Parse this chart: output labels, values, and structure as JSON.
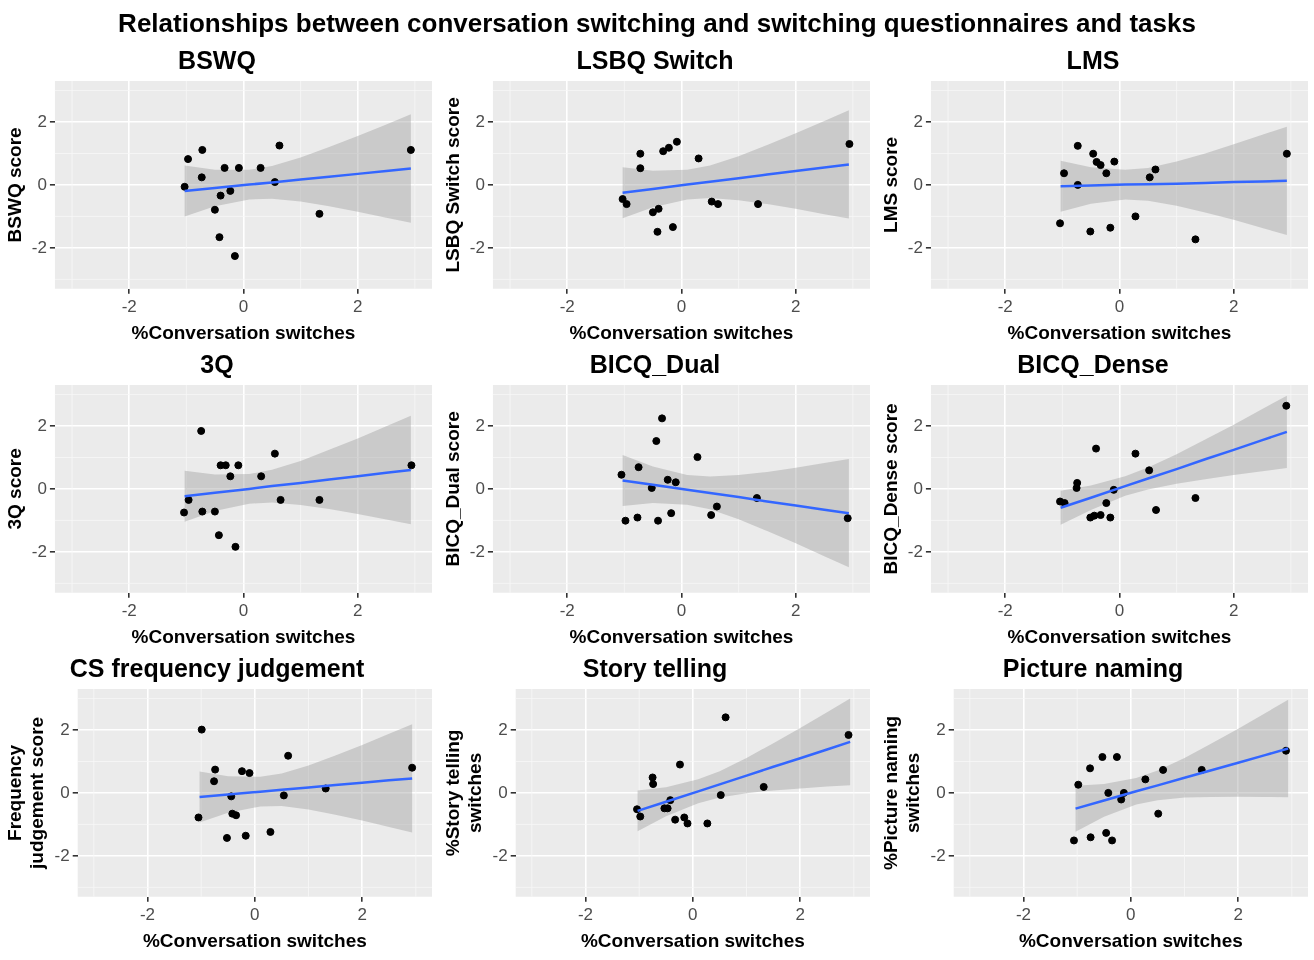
{
  "chart_data": [
    {
      "type": "other",
      "title": "Relationships between conversation switching and switching questionnaires and tasks"
    },
    {
      "type": "scatter",
      "title": "BSWQ",
      "xlabel": "%Conversation switches",
      "ylabel": "BSWQ score",
      "xlim": [
        -3.3,
        3.3
      ],
      "ylim": [
        -3.3,
        3.3
      ],
      "xticks": [
        -2,
        0,
        2
      ],
      "yticks": [
        -2,
        0,
        2
      ],
      "grid": true,
      "series": [
        {
          "type": "scatter",
          "marker": "circle",
          "color": "#000000",
          "x": [
            -1.03,
            -0.97,
            -0.72,
            -0.73,
            -0.5,
            -0.4,
            -0.42,
            -0.33,
            -0.23,
            -0.15,
            -0.08,
            0.3,
            0.55,
            0.63,
            1.33,
            2.93
          ],
          "values": [
            -0.06,
            0.82,
            1.11,
            0.24,
            -0.79,
            -0.34,
            -1.66,
            0.54,
            -0.19,
            -2.26,
            0.54,
            0.54,
            0.09,
            1.25,
            -0.92,
            1.11
          ]
        },
        {
          "type": "line",
          "marker": "none",
          "color": "#3366ff",
          "x": [
            -1.03,
            -0.5,
            0.1,
            0.5,
            1,
            1.5,
            2,
            2.5,
            2.93
          ],
          "values": [
            -0.19,
            -0.1,
            0.01,
            0.08,
            0.17,
            0.26,
            0.35,
            0.44,
            0.52
          ],
          "upper": [
            0.62,
            0.48,
            0.48,
            0.6,
            0.87,
            1.2,
            1.55,
            1.92,
            2.24
          ],
          "lower": [
            -1.0,
            -0.68,
            -0.46,
            -0.44,
            -0.53,
            -0.68,
            -0.85,
            -1.04,
            -1.2
          ]
        }
      ]
    },
    {
      "type": "scatter",
      "title": "LSBQ Switch",
      "xlabel": "%Conversation switches",
      "ylabel": "LSBQ Switch score",
      "xlim": [
        -3.3,
        3.3
      ],
      "ylim": [
        -3.3,
        3.3
      ],
      "xticks": [
        -2,
        0,
        2
      ],
      "yticks": [
        -2,
        0,
        2
      ],
      "grid": true,
      "series": [
        {
          "type": "scatter",
          "marker": "circle",
          "color": "#000000",
          "x": [
            -1.03,
            -0.96,
            -0.72,
            -0.72,
            -0.5,
            -0.4,
            -0.42,
            -0.32,
            -0.22,
            -0.15,
            -0.08,
            0.3,
            0.53,
            0.64,
            1.34,
            2.94
          ],
          "values": [
            -0.45,
            -0.61,
            0.99,
            0.53,
            -0.87,
            -0.76,
            -1.49,
            1.07,
            1.18,
            -1.34,
            1.37,
            0.84,
            -0.53,
            -0.61,
            -0.61,
            1.3
          ]
        },
        {
          "type": "line",
          "marker": "none",
          "color": "#3366ff",
          "x": [
            -1.03,
            -0.5,
            0.1,
            0.5,
            1,
            1.5,
            2,
            2.5,
            2.93
          ],
          "values": [
            -0.25,
            -0.13,
            0.01,
            0.1,
            0.21,
            0.33,
            0.44,
            0.55,
            0.65
          ],
          "upper": [
            0.56,
            0.45,
            0.48,
            0.62,
            0.91,
            1.27,
            1.64,
            2.03,
            2.37
          ],
          "lower": [
            -1.06,
            -0.71,
            -0.46,
            -0.42,
            -0.49,
            -0.61,
            -0.76,
            -0.93,
            -1.07
          ]
        }
      ]
    },
    {
      "type": "scatter",
      "title": "LMS",
      "xlabel": "%Conversation switches",
      "ylabel": "LMS score",
      "xlim": [
        -3.3,
        3.3
      ],
      "ylim": [
        -3.3,
        3.3
      ],
      "xticks": [
        -2,
        0,
        2
      ],
      "yticks": [
        -2,
        0,
        2
      ],
      "grid": true,
      "series": [
        {
          "type": "scatter",
          "marker": "circle",
          "color": "#000000",
          "x": [
            -1.04,
            -0.97,
            -0.73,
            -0.73,
            -0.51,
            -0.46,
            -0.4,
            -0.33,
            -0.23,
            -0.16,
            -0.09,
            0.28,
            0.53,
            0.63,
            1.33,
            2.93
          ],
          "values": [
            -1.22,
            0.37,
            1.24,
            0.0,
            -1.48,
            0.99,
            0.73,
            0.63,
            0.37,
            -1.36,
            0.74,
            -1.0,
            0.24,
            0.49,
            -1.73,
            0.99
          ]
        },
        {
          "type": "line",
          "marker": "none",
          "color": "#3366ff",
          "x": [
            -1.03,
            -0.5,
            0.1,
            0.5,
            1,
            1.5,
            2,
            2.5,
            2.93
          ],
          "values": [
            -0.04,
            -0.02,
            0.01,
            0.02,
            0.04,
            0.06,
            0.09,
            0.11,
            0.13
          ],
          "upper": [
            0.77,
            0.56,
            0.48,
            0.54,
            0.74,
            1.0,
            1.29,
            1.59,
            1.85
          ],
          "lower": [
            -0.85,
            -0.6,
            -0.46,
            -0.5,
            -0.66,
            -0.88,
            -1.11,
            -1.37,
            -1.59
          ]
        }
      ]
    },
    {
      "type": "scatter",
      "title": "3Q",
      "xlabel": "%Conversation switches",
      "ylabel": "3Q score",
      "xlim": [
        -3.3,
        3.3
      ],
      "ylim": [
        -3.3,
        3.3
      ],
      "xticks": [
        -2,
        0,
        2
      ],
      "yticks": [
        -2,
        0,
        2
      ],
      "grid": true,
      "series": [
        {
          "type": "scatter",
          "marker": "circle",
          "color": "#000000",
          "x": [
            -1.04,
            -0.96,
            -0.74,
            -0.72,
            -0.5,
            -0.43,
            -0.4,
            -0.31,
            -0.23,
            -0.14,
            -0.09,
            0.31,
            0.55,
            0.65,
            1.33,
            2.94
          ],
          "values": [
            -0.75,
            -0.35,
            1.84,
            -0.72,
            -0.72,
            -1.47,
            0.75,
            0.75,
            0.4,
            -1.84,
            0.75,
            0.4,
            1.12,
            -0.35,
            -0.35,
            0.75
          ]
        },
        {
          "type": "line",
          "marker": "none",
          "color": "#3366ff",
          "x": [
            -1.03,
            -0.5,
            0.1,
            0.5,
            1,
            1.5,
            2,
            2.5,
            2.93
          ],
          "values": [
            -0.23,
            -0.12,
            0.0,
            0.09,
            0.19,
            0.3,
            0.4,
            0.51,
            0.6
          ],
          "upper": [
            0.58,
            0.46,
            0.47,
            0.61,
            0.89,
            1.24,
            1.6,
            1.99,
            2.32
          ],
          "lower": [
            -1.04,
            -0.7,
            -0.47,
            -0.43,
            -0.51,
            -0.64,
            -0.8,
            -0.97,
            -1.12
          ]
        }
      ]
    },
    {
      "type": "scatter",
      "title": "BICQ_Dual",
      "xlabel": "%Conversation switches",
      "ylabel": "BICQ_Dual score",
      "xlim": [
        -3.3,
        3.3
      ],
      "ylim": [
        -3.3,
        3.3
      ],
      "xticks": [
        -2,
        0,
        2
      ],
      "yticks": [
        -2,
        0,
        2
      ],
      "grid": true,
      "series": [
        {
          "type": "scatter",
          "marker": "circle",
          "color": "#000000",
          "x": [
            -1.05,
            -0.98,
            -0.75,
            -0.77,
            -0.52,
            -0.44,
            -0.41,
            -0.34,
            -0.24,
            -0.18,
            -0.1,
            0.28,
            0.52,
            0.62,
            1.32,
            2.91
          ],
          "values": [
            0.45,
            -1.01,
            0.69,
            -0.91,
            0.03,
            1.52,
            -1.01,
            2.24,
            0.29,
            -0.77,
            0.21,
            1.01,
            -0.83,
            -0.56,
            -0.29,
            -0.93
          ]
        },
        {
          "type": "line",
          "marker": "none",
          "color": "#3366ff",
          "x": [
            -1.03,
            -0.5,
            0.1,
            0.5,
            1,
            1.5,
            2,
            2.5,
            2.93
          ],
          "values": [
            0.27,
            0.13,
            -0.03,
            -0.13,
            -0.26,
            -0.4,
            -0.53,
            -0.66,
            -0.77
          ],
          "upper": [
            1.08,
            0.71,
            0.44,
            0.39,
            0.44,
            0.54,
            0.67,
            0.82,
            0.95
          ],
          "lower": [
            -0.54,
            -0.45,
            -0.5,
            -0.65,
            -0.96,
            -1.34,
            -1.73,
            -2.14,
            -2.49
          ]
        }
      ]
    },
    {
      "type": "scatter",
      "title": "BICQ_Dense",
      "xlabel": "%Conversation switches",
      "ylabel": "BICQ_Dense score",
      "xlim": [
        -3.3,
        3.3
      ],
      "ylim": [
        -3.3,
        3.3
      ],
      "xticks": [
        -2,
        0,
        2
      ],
      "yticks": [
        -2,
        0,
        2
      ],
      "grid": true,
      "series": [
        {
          "type": "scatter",
          "marker": "circle",
          "color": "#000000",
          "x": [
            -1.04,
            -0.96,
            -0.75,
            -0.74,
            -0.51,
            -0.41,
            -0.44,
            -0.33,
            -0.23,
            -0.16,
            -0.1,
            0.28,
            0.52,
            0.64,
            1.33,
            2.92
          ],
          "values": [
            -0.4,
            -0.45,
            0.03,
            0.19,
            -0.91,
            1.28,
            -0.85,
            -0.83,
            -0.45,
            -0.91,
            -0.03,
            1.12,
            0.59,
            -0.67,
            -0.29,
            2.64
          ]
        },
        {
          "type": "line",
          "marker": "none",
          "color": "#3366ff",
          "x": [
            -1.03,
            -0.5,
            0.1,
            0.5,
            1,
            1.5,
            2,
            2.5,
            2.93
          ],
          "values": [
            -0.6,
            -0.28,
            0.09,
            0.33,
            0.63,
            0.94,
            1.24,
            1.55,
            1.81
          ],
          "upper": [
            -0.06,
            0.11,
            0.4,
            0.68,
            1.1,
            1.57,
            2.04,
            2.54,
            2.96
          ],
          "lower": [
            -1.14,
            -0.67,
            -0.22,
            -0.02,
            0.16,
            0.31,
            0.44,
            0.56,
            0.66
          ]
        }
      ]
    },
    {
      "type": "scatter",
      "title": "CS frequency judgement",
      "xlabel": "%Conversation switches",
      "ylabel": "Frequency judgement score",
      "xlim": [
        -3.3,
        3.3
      ],
      "ylim": [
        -3.3,
        3.3
      ],
      "xticks": [
        -2,
        0,
        2
      ],
      "yticks": [
        -2,
        0,
        2
      ],
      "grid": true,
      "series": [
        {
          "type": "scatter",
          "marker": "circle",
          "color": "#000000",
          "x": [
            -1.05,
            -0.99,
            -0.74,
            -0.76,
            -0.52,
            -0.44,
            -0.42,
            -0.35,
            -0.24,
            -0.17,
            -0.1,
            0.29,
            0.54,
            0.62,
            1.32,
            2.93
          ],
          "values": [
            -0.78,
            2.01,
            0.74,
            0.37,
            -1.43,
            -0.11,
            -0.66,
            -0.71,
            0.69,
            -1.36,
            0.63,
            -1.24,
            -0.08,
            1.18,
            0.14,
            0.8
          ]
        },
        {
          "type": "line",
          "marker": "none",
          "color": "#3366ff",
          "x": [
            -1.03,
            -0.5,
            0.1,
            0.5,
            1,
            1.5,
            2,
            2.5,
            2.93
          ],
          "values": [
            -0.13,
            -0.05,
            0.04,
            0.1,
            0.17,
            0.25,
            0.32,
            0.4,
            0.46
          ],
          "upper": [
            0.68,
            0.53,
            0.51,
            0.62,
            0.87,
            1.19,
            1.52,
            1.88,
            2.18
          ],
          "lower": [
            -0.94,
            -0.63,
            -0.43,
            -0.42,
            -0.53,
            -0.69,
            -0.88,
            -1.08,
            -1.26
          ]
        }
      ]
    },
    {
      "type": "scatter",
      "title": "Story telling",
      "xlabel": "%Conversation switches",
      "ylabel": "%Story telling switches",
      "xlim": [
        -3.3,
        3.3
      ],
      "ylim": [
        -3.3,
        3.3
      ],
      "xticks": [
        -2,
        0,
        2
      ],
      "yticks": [
        -2,
        0,
        2
      ],
      "grid": true,
      "series": [
        {
          "type": "scatter",
          "marker": "circle",
          "color": "#000000",
          "x": [
            -1.04,
            -0.98,
            -0.75,
            -0.74,
            -0.53,
            -0.47,
            -0.42,
            -0.33,
            -0.24,
            -0.16,
            -0.1,
            0.27,
            0.52,
            0.61,
            1.32,
            2.9
          ],
          "values": [
            -0.52,
            -0.75,
            0.49,
            0.28,
            -0.49,
            -0.49,
            -0.23,
            -0.85,
            0.9,
            -0.78,
            -0.97,
            -0.97,
            -0.07,
            2.4,
            0.19,
            1.84
          ]
        },
        {
          "type": "line",
          "marker": "none",
          "color": "#3366ff",
          "x": [
            -1.03,
            -0.5,
            0.1,
            0.5,
            1,
            1.5,
            2,
            2.5,
            2.93
          ],
          "values": [
            -0.57,
            -0.28,
            0.05,
            0.27,
            0.55,
            0.83,
            1.1,
            1.38,
            1.62
          ],
          "upper": [
            0.08,
            0.18,
            0.43,
            0.69,
            1.11,
            1.58,
            2.06,
            2.56,
            3.0
          ],
          "lower": [
            -1.22,
            -0.74,
            -0.33,
            -0.15,
            -0.01,
            0.08,
            0.14,
            0.2,
            0.24
          ]
        }
      ]
    },
    {
      "type": "scatter",
      "title": "Picture naming",
      "xlabel": "%Conversation switches",
      "ylabel": "%Picture naming switches",
      "xlim": [
        -3.3,
        3.3
      ],
      "ylim": [
        -3.3,
        3.3
      ],
      "xticks": [
        -2,
        0,
        2
      ],
      "yticks": [
        -2,
        0,
        2
      ],
      "grid": true,
      "series": [
        {
          "type": "scatter",
          "marker": "circle",
          "color": "#000000",
          "x": [
            -1.06,
            -0.98,
            -0.76,
            -0.75,
            -0.53,
            -0.46,
            -0.42,
            -0.35,
            -0.26,
            -0.18,
            -0.13,
            0.27,
            0.51,
            0.6,
            1.32,
            2.89
          ],
          "values": [
            -1.51,
            0.26,
            0.78,
            -1.41,
            1.14,
            -1.27,
            0.0,
            -1.51,
            1.14,
            -0.21,
            0.0,
            0.43,
            -0.66,
            0.73,
            0.73,
            1.34
          ]
        },
        {
          "type": "line",
          "marker": "none",
          "color": "#3366ff",
          "x": [
            -1.03,
            -0.5,
            0.1,
            0.5,
            1,
            1.5,
            2,
            2.5,
            2.93
          ],
          "values": [
            -0.5,
            -0.24,
            0.05,
            0.24,
            0.48,
            0.72,
            0.96,
            1.2,
            1.41
          ],
          "upper": [
            0.23,
            0.28,
            0.47,
            0.71,
            1.11,
            1.57,
            2.04,
            2.53,
            2.96
          ],
          "lower": [
            -1.23,
            -0.76,
            -0.37,
            -0.23,
            -0.15,
            -0.13,
            -0.12,
            -0.13,
            -0.14
          ]
        }
      ]
    }
  ]
}
